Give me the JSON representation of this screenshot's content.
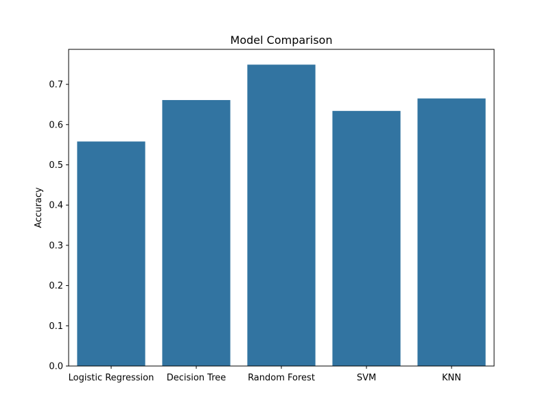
{
  "chart_data": {
    "type": "bar",
    "title": "Model Comparison",
    "xlabel": "",
    "ylabel": "Accuracy",
    "categories": [
      "Logistic Regression",
      "Decision Tree",
      "Random Forest",
      "SVM",
      "KNN"
    ],
    "values": [
      0.558,
      0.661,
      0.749,
      0.634,
      0.665
    ],
    "ylim": [
      0,
      0.787
    ],
    "yticks": [
      0.0,
      0.1,
      0.2,
      0.3,
      0.4,
      0.5,
      0.6,
      0.7
    ],
    "ytick_labels": [
      "0.0",
      "0.1",
      "0.2",
      "0.3",
      "0.4",
      "0.5",
      "0.6",
      "0.7"
    ],
    "grid": false,
    "legend": false,
    "bar_color": "#3274a1"
  }
}
